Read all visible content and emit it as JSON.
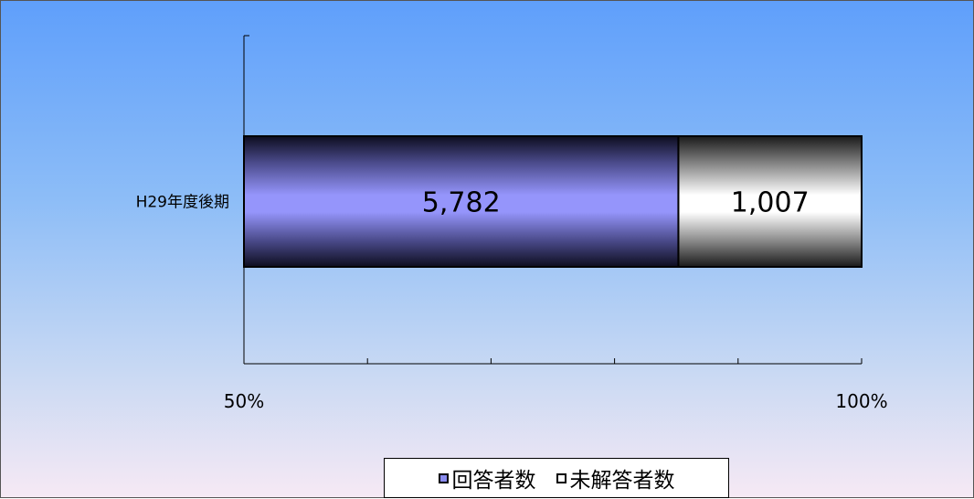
{
  "chart_data": {
    "type": "bar",
    "orientation": "horizontal",
    "stacked": "percent",
    "categories": [
      "H29年度後期"
    ],
    "series": [
      {
        "name": "回答者数",
        "values": [
          5782
        ],
        "data_labels": [
          "5,782"
        ],
        "color": "#8a8cf0"
      },
      {
        "name": "未解答者数",
        "values": [
          1007
        ],
        "data_labels": [
          "1,007"
        ],
        "color": "#ffffff"
      }
    ],
    "xlim_percent": [
      50,
      100
    ],
    "x_tick_labels": [
      "50%",
      "100%"
    ],
    "grid": false,
    "legend_position": "bottom"
  }
}
